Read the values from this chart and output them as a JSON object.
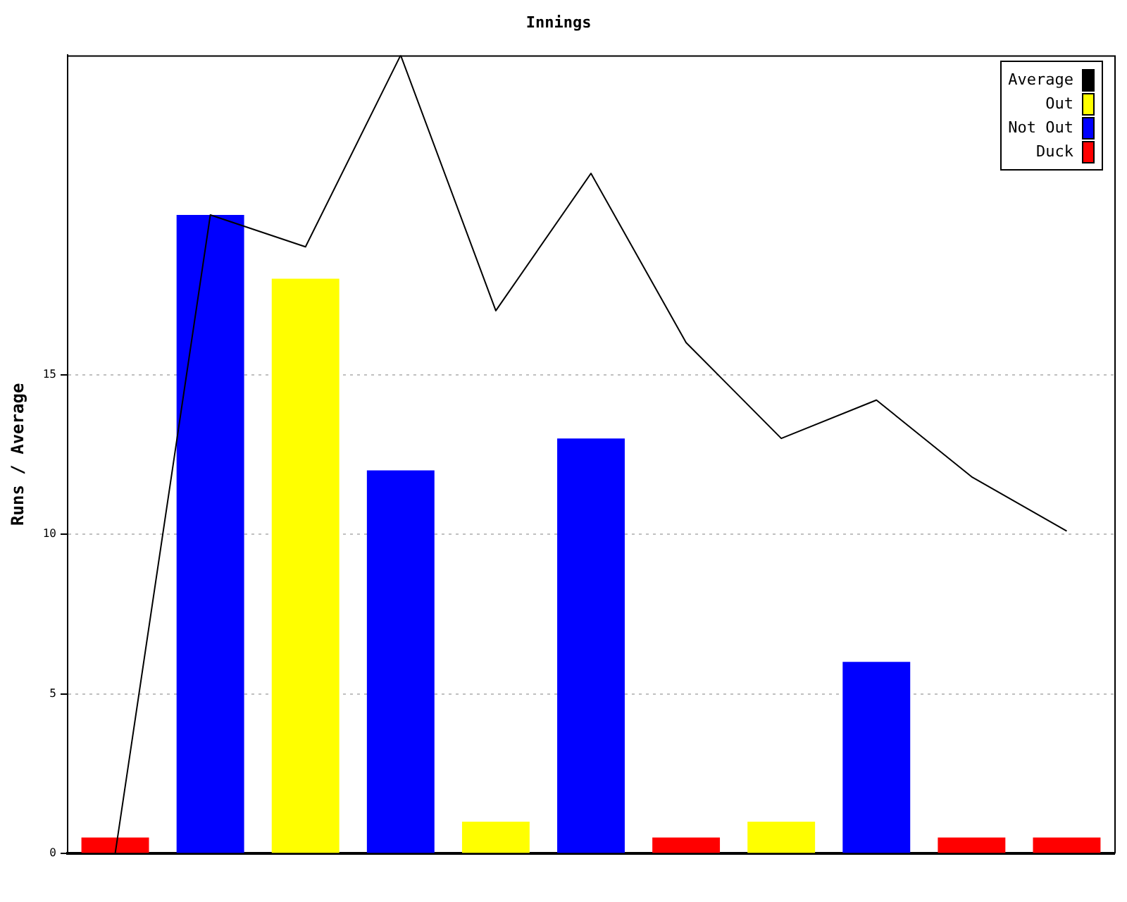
{
  "chart_data": {
    "type": "bar",
    "title": "Innings",
    "ylabel": "Runs / Average",
    "categories": [
      null,
      null,
      null,
      null,
      null,
      null,
      null,
      null,
      null,
      null,
      null
    ],
    "series": [
      {
        "name": "Average",
        "type": "line",
        "color": "#000000",
        "values": [
          0,
          20,
          19,
          25,
          17,
          21.3,
          16,
          13,
          14.2,
          11.8,
          10.1
        ]
      },
      {
        "name": "Out",
        "color": "#ffff00",
        "values": [
          null,
          null,
          18,
          null,
          1,
          null,
          null,
          1,
          null,
          null,
          null
        ]
      },
      {
        "name": "Not Out",
        "color": "#0000ff",
        "values": [
          null,
          20,
          null,
          12,
          null,
          13,
          null,
          null,
          6,
          null,
          null
        ]
      },
      {
        "name": "Duck",
        "color": "#ff0000",
        "values": [
          0.5,
          null,
          null,
          null,
          null,
          null,
          0.5,
          null,
          null,
          0.5,
          0.5
        ]
      }
    ],
    "ylim": [
      0,
      25
    ],
    "yticks": [
      0,
      5,
      10,
      15
    ],
    "grid": "y",
    "legend": "top right",
    "marker": "none"
  }
}
